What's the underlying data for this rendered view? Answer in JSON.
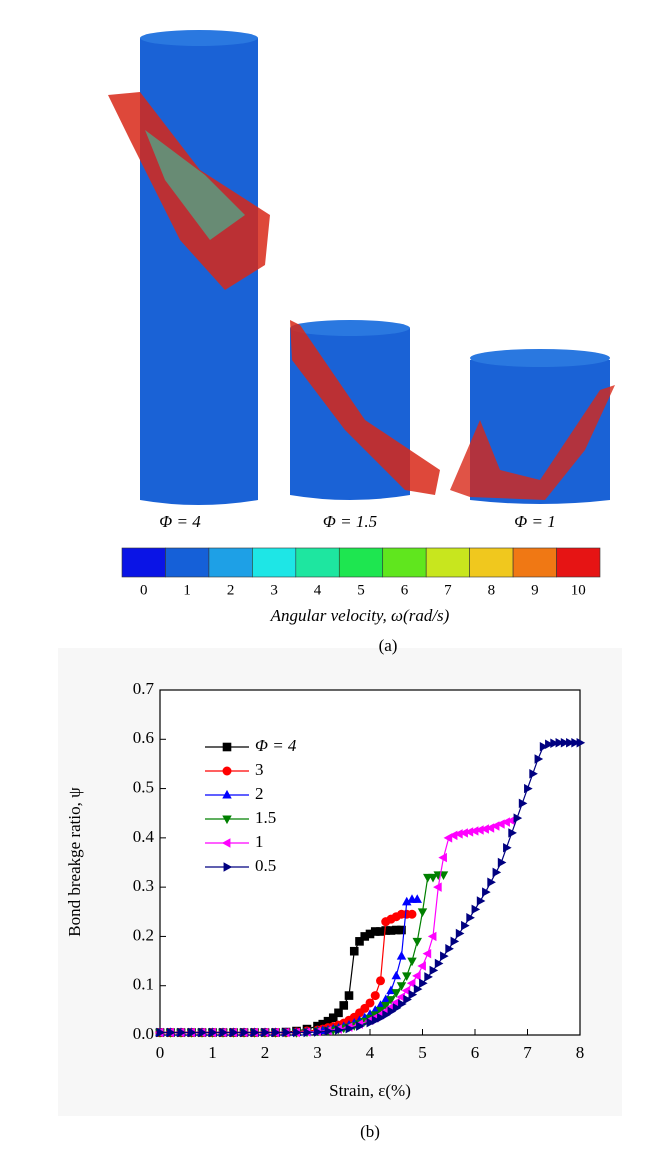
{
  "figure_a": {
    "labels": [
      "Φ = 4",
      "Φ = 1.5",
      "Φ = 1"
    ],
    "caption": "(a)"
  },
  "colorbar": {
    "ticks": [
      0,
      1,
      2,
      3,
      4,
      5,
      6,
      7,
      8,
      9,
      10
    ],
    "label": "Angular velocity,  ω(rad/s)",
    "colors": [
      "#0a14e6",
      "#1560d8",
      "#1ea0e6",
      "#1ee6e6",
      "#1ee6a0",
      "#1ee650",
      "#60e61e",
      "#c8e61e",
      "#f0c81e",
      "#f07814",
      "#e61414"
    ]
  },
  "chart_data": {
    "type": "line",
    "caption": "(b)",
    "x_label": "Strain, ε(%)",
    "y_label": "Bond breakge ratio, ψ",
    "xlim": [
      0,
      8
    ],
    "xticks": [
      0,
      1,
      2,
      3,
      4,
      5,
      6,
      7,
      8
    ],
    "ylim": [
      0,
      0.7
    ],
    "yticks": [
      {
        "value": 0,
        "label": "0.0"
      },
      0.1,
      0.2,
      0.3,
      0.4,
      0.5,
      0.6,
      0.7
    ],
    "legend": "upper left",
    "series": [
      {
        "name": "Φ = 4",
        "color": "#000000",
        "marker": "square",
        "x": [
          0,
          0.2,
          0.4,
          0.6,
          0.8,
          1.0,
          1.2,
          1.4,
          1.6,
          1.8,
          2.0,
          2.2,
          2.4,
          2.6,
          2.8,
          3.0,
          3.1,
          3.2,
          3.3,
          3.4,
          3.5,
          3.6,
          3.7,
          3.8,
          3.9,
          4.0,
          4.1,
          4.2,
          4.3,
          4.4,
          4.5,
          4.6
        ],
        "values": [
          0.005,
          0.005,
          0.005,
          0.005,
          0.005,
          0.005,
          0.005,
          0.005,
          0.005,
          0.005,
          0.005,
          0.005,
          0.006,
          0.008,
          0.012,
          0.018,
          0.022,
          0.028,
          0.035,
          0.045,
          0.06,
          0.08,
          0.17,
          0.19,
          0.2,
          0.205,
          0.21,
          0.21,
          0.212,
          0.212,
          0.213,
          0.213
        ]
      },
      {
        "name": "3",
        "color": "#ff0000",
        "marker": "circle",
        "x": [
          0,
          0.2,
          0.4,
          0.6,
          0.8,
          1.0,
          1.2,
          1.4,
          1.6,
          1.8,
          2.0,
          2.2,
          2.4,
          2.6,
          2.8,
          3.0,
          3.1,
          3.2,
          3.3,
          3.4,
          3.5,
          3.6,
          3.7,
          3.8,
          3.9,
          4.0,
          4.1,
          4.2,
          4.3,
          4.4,
          4.5,
          4.6,
          4.7,
          4.8
        ],
        "values": [
          0.005,
          0.005,
          0.005,
          0.005,
          0.005,
          0.005,
          0.005,
          0.005,
          0.005,
          0.005,
          0.005,
          0.005,
          0.005,
          0.006,
          0.008,
          0.01,
          0.012,
          0.015,
          0.017,
          0.02,
          0.024,
          0.03,
          0.036,
          0.045,
          0.054,
          0.065,
          0.08,
          0.11,
          0.23,
          0.235,
          0.24,
          0.245,
          0.245,
          0.245
        ]
      },
      {
        "name": "2",
        "color": "#0000ff",
        "marker": "triangle-up",
        "x": [
          0,
          0.2,
          0.4,
          0.6,
          0.8,
          1.0,
          1.2,
          1.4,
          1.6,
          1.8,
          2.0,
          2.2,
          2.4,
          2.6,
          2.8,
          3.0,
          3.1,
          3.2,
          3.3,
          3.4,
          3.5,
          3.6,
          3.7,
          3.8,
          3.9,
          4.0,
          4.1,
          4.2,
          4.3,
          4.4,
          4.5,
          4.6,
          4.7,
          4.8,
          4.9
        ],
        "values": [
          0.005,
          0.005,
          0.005,
          0.005,
          0.005,
          0.005,
          0.005,
          0.005,
          0.005,
          0.005,
          0.005,
          0.005,
          0.005,
          0.005,
          0.006,
          0.008,
          0.009,
          0.01,
          0.012,
          0.014,
          0.017,
          0.02,
          0.024,
          0.029,
          0.035,
          0.042,
          0.05,
          0.06,
          0.072,
          0.09,
          0.12,
          0.16,
          0.27,
          0.275,
          0.275
        ]
      },
      {
        "name": "1.5",
        "color": "#008000",
        "marker": "triangle-down",
        "x": [
          0,
          0.2,
          0.4,
          0.6,
          0.8,
          1.0,
          1.2,
          1.4,
          1.6,
          1.8,
          2.0,
          2.2,
          2.4,
          2.6,
          2.8,
          3.0,
          3.2,
          3.3,
          3.4,
          3.5,
          3.6,
          3.7,
          3.8,
          3.9,
          4.0,
          4.1,
          4.2,
          4.3,
          4.4,
          4.5,
          4.6,
          4.7,
          4.8,
          4.9,
          5.0,
          5.1,
          5.2,
          5.3,
          5.4
        ],
        "values": [
          0.005,
          0.005,
          0.005,
          0.005,
          0.005,
          0.005,
          0.005,
          0.005,
          0.005,
          0.005,
          0.005,
          0.005,
          0.005,
          0.005,
          0.006,
          0.008,
          0.009,
          0.01,
          0.012,
          0.014,
          0.016,
          0.019,
          0.023,
          0.028,
          0.034,
          0.041,
          0.05,
          0.06,
          0.072,
          0.086,
          0.1,
          0.12,
          0.15,
          0.19,
          0.25,
          0.32,
          0.32,
          0.325,
          0.325
        ]
      },
      {
        "name": "1",
        "color": "#ff00ff",
        "marker": "triangle-left",
        "x": [
          0,
          0.2,
          0.4,
          0.6,
          0.8,
          1.0,
          1.2,
          1.4,
          1.6,
          1.8,
          2.0,
          2.2,
          2.4,
          2.6,
          2.8,
          3.0,
          3.2,
          3.4,
          3.6,
          3.8,
          4.0,
          4.1,
          4.2,
          4.3,
          4.4,
          4.5,
          4.6,
          4.7,
          4.8,
          4.9,
          5.0,
          5.1,
          5.2,
          5.3,
          5.4,
          5.5,
          5.6,
          5.7,
          5.8,
          5.9,
          6.0,
          6.1,
          6.2,
          6.3,
          6.4,
          6.5,
          6.6,
          6.7
        ],
        "values": [
          0.005,
          0.005,
          0.005,
          0.005,
          0.005,
          0.005,
          0.005,
          0.005,
          0.005,
          0.005,
          0.005,
          0.005,
          0.005,
          0.005,
          0.006,
          0.007,
          0.009,
          0.012,
          0.016,
          0.022,
          0.03,
          0.035,
          0.041,
          0.048,
          0.056,
          0.066,
          0.077,
          0.09,
          0.105,
          0.12,
          0.14,
          0.165,
          0.2,
          0.3,
          0.36,
          0.4,
          0.405,
          0.408,
          0.41,
          0.412,
          0.414,
          0.416,
          0.418,
          0.42,
          0.424,
          0.428,
          0.432,
          0.435
        ]
      },
      {
        "name": "0.5",
        "color": "#000080",
        "marker": "triangle-right",
        "x": [
          0,
          0.2,
          0.4,
          0.6,
          0.8,
          1.0,
          1.2,
          1.4,
          1.6,
          1.8,
          2.0,
          2.2,
          2.4,
          2.6,
          2.8,
          3.0,
          3.2,
          3.4,
          3.6,
          3.8,
          4.0,
          4.1,
          4.2,
          4.3,
          4.4,
          4.5,
          4.6,
          4.7,
          4.8,
          4.9,
          5.0,
          5.1,
          5.2,
          5.3,
          5.4,
          5.5,
          5.6,
          5.7,
          5.8,
          5.9,
          6.0,
          6.1,
          6.2,
          6.3,
          6.4,
          6.5,
          6.6,
          6.7,
          6.8,
          6.9,
          7.0,
          7.1,
          7.2,
          7.3,
          7.4,
          7.5,
          7.6,
          7.7,
          7.8,
          7.9,
          8.0
        ],
        "values": [
          0.005,
          0.005,
          0.005,
          0.005,
          0.005,
          0.005,
          0.005,
          0.005,
          0.005,
          0.005,
          0.005,
          0.005,
          0.005,
          0.005,
          0.005,
          0.006,
          0.008,
          0.01,
          0.013,
          0.018,
          0.025,
          0.03,
          0.035,
          0.041,
          0.048,
          0.055,
          0.063,
          0.072,
          0.082,
          0.093,
          0.105,
          0.118,
          0.131,
          0.145,
          0.16,
          0.175,
          0.19,
          0.206,
          0.222,
          0.238,
          0.255,
          0.272,
          0.29,
          0.31,
          0.33,
          0.35,
          0.38,
          0.41,
          0.44,
          0.47,
          0.5,
          0.53,
          0.56,
          0.585,
          0.59,
          0.592,
          0.593,
          0.593,
          0.593,
          0.593,
          0.593
        ]
      }
    ]
  }
}
